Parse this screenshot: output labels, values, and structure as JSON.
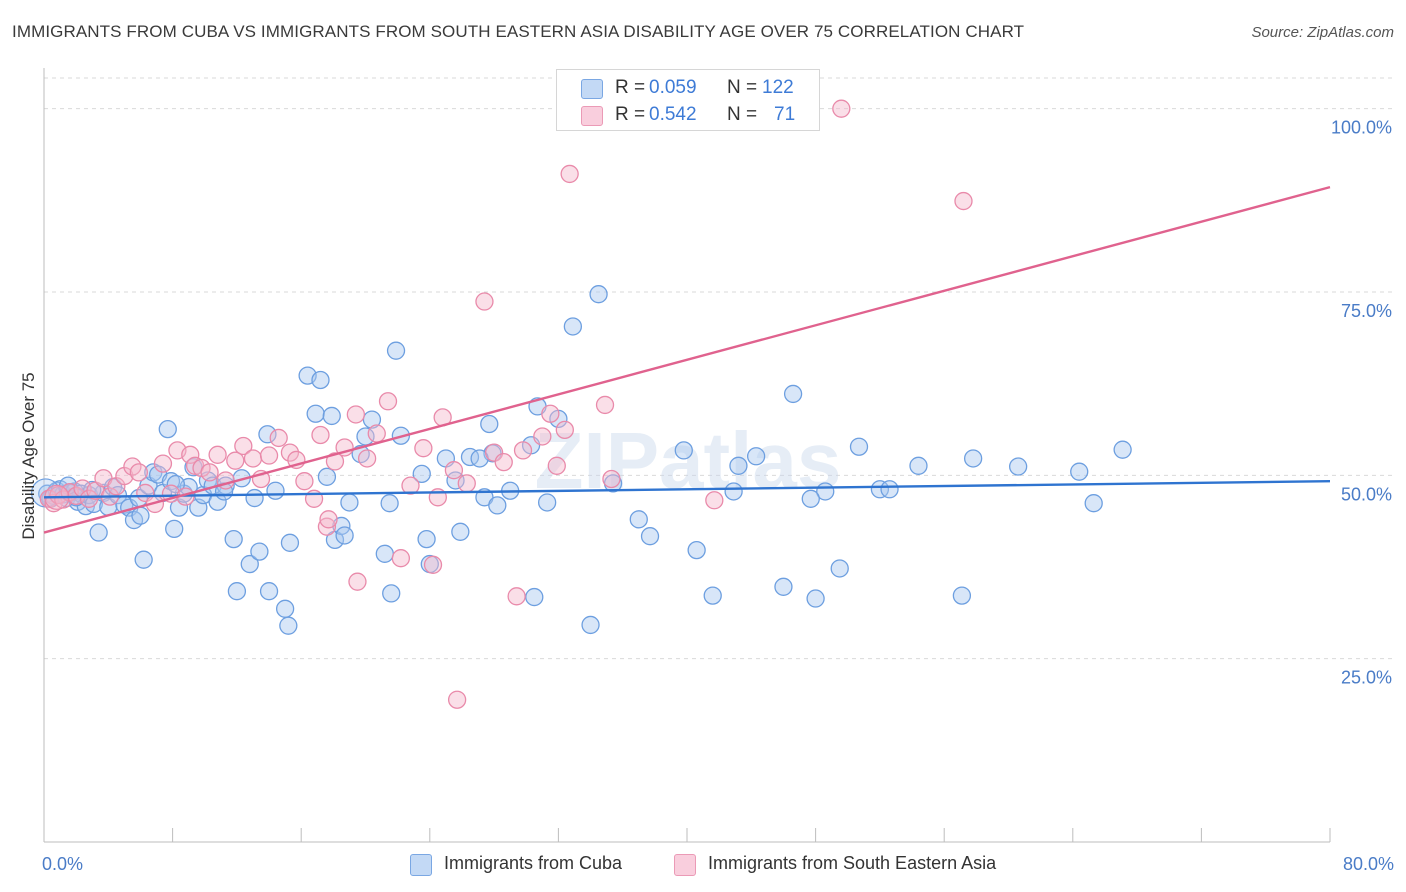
{
  "title": "IMMIGRANTS FROM CUBA VS IMMIGRANTS FROM SOUTH EASTERN ASIA DISABILITY AGE OVER 75 CORRELATION CHART",
  "source": "Source: ZipAtlas.com",
  "watermark": "ZIPatlas",
  "legend": {
    "rows": [
      {
        "r_label": "R =",
        "r_value": "0.059",
        "n_label": "N =",
        "n_value": "122",
        "color": "#a9c8f0"
      },
      {
        "r_label": "R =",
        "r_value": "0.542",
        "n_label": "N =",
        "n_value": "71",
        "color": "#f5b8cc"
      }
    ]
  },
  "colors": {
    "blue_fill": "#a9c8f0",
    "blue_stroke": "#6d9fe0",
    "blue_line": "#2f74d0",
    "pink_fill": "#f5b8cc",
    "pink_stroke": "#e98aaa",
    "pink_line": "#e0628e",
    "tick_text": "#4a7cc7",
    "grid": "#d9d9d9"
  },
  "chart_data": {
    "type": "scatter",
    "title": "IMMIGRANTS FROM CUBA VS IMMIGRANTS FROM SOUTH EASTERN ASIA DISABILITY AGE OVER 75 CORRELATION CHART",
    "xlabel": "",
    "ylabel": "Disability Age Over 75",
    "xlim": [
      0,
      80
    ],
    "ylim": [
      0,
      105
    ],
    "x_tick_labels": [
      "0.0%",
      "80.0%"
    ],
    "y_ticks": [
      25,
      50,
      75,
      100
    ],
    "y_tick_labels": [
      "25.0%",
      "50.0%",
      "75.0%",
      "100.0%"
    ],
    "grid": "horizontal dashed",
    "legend_position": "bottom",
    "series": [
      {
        "name": "Immigrants from Cuba",
        "color": "#a9c8f0",
        "trend": {
          "x": [
            0,
            80
          ],
          "y": [
            47.0,
            49.2
          ]
        },
        "points": [
          [
            0.2,
            47.5
          ],
          [
            0.4,
            46.8
          ],
          [
            0.6,
            47.2
          ],
          [
            0.8,
            47.9
          ],
          [
            1.0,
            48.1
          ],
          [
            1.2,
            47.4
          ],
          [
            1.4,
            46.9
          ],
          [
            1.6,
            47.6
          ],
          [
            1.9,
            47.8
          ],
          [
            2.1,
            46.4
          ],
          [
            2.3,
            47.5
          ],
          [
            2.6,
            45.8
          ],
          [
            2.8,
            47.3
          ],
          [
            3.1,
            46.1
          ],
          [
            3.4,
            42.2
          ],
          [
            3.7,
            47.6
          ],
          [
            4.0,
            45.7
          ],
          [
            4.3,
            48.4
          ],
          [
            4.6,
            47.3
          ],
          [
            5.0,
            46.0
          ],
          [
            5.3,
            45.6
          ],
          [
            5.6,
            43.9
          ],
          [
            5.9,
            46.9
          ],
          [
            6.2,
            38.5
          ],
          [
            6.5,
            48.6
          ],
          [
            6.8,
            50.4
          ],
          [
            7.1,
            50.1
          ],
          [
            7.4,
            47.6
          ],
          [
            7.7,
            56.3
          ],
          [
            7.9,
            49.2
          ],
          [
            8.1,
            42.7
          ],
          [
            8.4,
            45.6
          ],
          [
            8.7,
            47.5
          ],
          [
            9.0,
            48.4
          ],
          [
            9.3,
            51.1
          ],
          [
            9.6,
            45.6
          ],
          [
            9.9,
            47.3
          ],
          [
            10.2,
            49.3
          ],
          [
            10.5,
            48.6
          ],
          [
            10.8,
            46.4
          ],
          [
            11.3,
            48.6
          ],
          [
            11.8,
            41.3
          ],
          [
            12.3,
            49.6
          ],
          [
            12.8,
            37.9
          ],
          [
            13.1,
            46.9
          ],
          [
            13.4,
            39.6
          ],
          [
            13.9,
            55.6
          ],
          [
            14.4,
            47.9
          ],
          [
            15.0,
            31.8
          ],
          [
            15.3,
            40.8
          ],
          [
            16.4,
            63.6
          ],
          [
            16.9,
            58.4
          ],
          [
            17.2,
            63.0
          ],
          [
            17.6,
            49.8
          ],
          [
            17.9,
            58.1
          ],
          [
            18.1,
            41.2
          ],
          [
            18.5,
            43.1
          ],
          [
            19.0,
            46.3
          ],
          [
            19.7,
            52.9
          ],
          [
            20.0,
            55.3
          ],
          [
            20.4,
            57.6
          ],
          [
            21.2,
            39.3
          ],
          [
            21.5,
            46.2
          ],
          [
            21.6,
            33.9
          ],
          [
            21.9,
            67.0
          ],
          [
            22.2,
            55.4
          ],
          [
            23.5,
            50.2
          ],
          [
            23.8,
            41.3
          ],
          [
            24.0,
            37.9
          ],
          [
            25.0,
            52.3
          ],
          [
            25.6,
            49.3
          ],
          [
            25.9,
            42.3
          ],
          [
            26.5,
            52.5
          ],
          [
            27.4,
            47.0
          ],
          [
            27.7,
            57.0
          ],
          [
            27.9,
            53.0
          ],
          [
            28.2,
            45.9
          ],
          [
            29.0,
            47.9
          ],
          [
            30.3,
            54.1
          ],
          [
            30.5,
            33.4
          ],
          [
            30.7,
            59.4
          ],
          [
            31.3,
            46.3
          ],
          [
            32.0,
            57.7
          ],
          [
            32.9,
            70.3
          ],
          [
            34.5,
            74.7
          ],
          [
            35.4,
            48.9
          ],
          [
            37.0,
            44.0
          ],
          [
            37.7,
            41.7
          ],
          [
            39.8,
            53.4
          ],
          [
            40.6,
            39.8
          ],
          [
            41.6,
            33.6
          ],
          [
            43.2,
            51.3
          ],
          [
            44.3,
            52.6
          ],
          [
            46.0,
            34.8
          ],
          [
            46.6,
            61.1
          ],
          [
            48.6,
            47.8
          ],
          [
            49.5,
            37.3
          ],
          [
            50.7,
            53.9
          ],
          [
            52.0,
            48.1
          ],
          [
            52.6,
            48.1
          ],
          [
            54.4,
            51.3
          ],
          [
            57.1,
            33.6
          ],
          [
            57.8,
            52.3
          ],
          [
            60.6,
            51.2
          ],
          [
            64.4,
            50.5
          ],
          [
            65.3,
            46.2
          ],
          [
            67.1,
            53.5
          ],
          [
            2.0,
            47.0
          ],
          [
            3.0,
            48.0
          ],
          [
            6.0,
            44.5
          ],
          [
            14.0,
            34.2
          ],
          [
            15.2,
            29.5
          ],
          [
            18.7,
            41.8
          ],
          [
            34.0,
            29.6
          ],
          [
            42.9,
            47.8
          ],
          [
            48.0,
            33.2
          ],
          [
            47.7,
            46.8
          ],
          [
            27.1,
            52.3
          ],
          [
            12.0,
            34.2
          ],
          [
            8.2,
            48.8
          ],
          [
            11.2,
            47.8
          ],
          [
            1.5,
            48.6
          ]
        ]
      },
      {
        "name": "Immigrants from South Eastern Asia",
        "color": "#f5b8cc",
        "trend": {
          "x": [
            0,
            80
          ],
          "y": [
            42.2,
            89.3
          ]
        },
        "points": [
          [
            0.3,
            46.8
          ],
          [
            0.6,
            46.2
          ],
          [
            0.9,
            47.3
          ],
          [
            1.2,
            46.7
          ],
          [
            1.6,
            47.7
          ],
          [
            2.0,
            47.2
          ],
          [
            2.4,
            48.2
          ],
          [
            2.8,
            46.8
          ],
          [
            3.2,
            47.9
          ],
          [
            3.7,
            49.6
          ],
          [
            4.1,
            47.1
          ],
          [
            4.5,
            48.5
          ],
          [
            5.0,
            49.9
          ],
          [
            5.5,
            51.2
          ],
          [
            5.9,
            50.4
          ],
          [
            6.3,
            47.6
          ],
          [
            6.9,
            46.1
          ],
          [
            7.4,
            51.6
          ],
          [
            7.9,
            47.5
          ],
          [
            8.3,
            53.4
          ],
          [
            8.8,
            47.1
          ],
          [
            9.1,
            52.8
          ],
          [
            9.4,
            51.3
          ],
          [
            9.8,
            51.0
          ],
          [
            10.3,
            50.4
          ],
          [
            10.8,
            52.8
          ],
          [
            11.3,
            49.3
          ],
          [
            11.9,
            52.0
          ],
          [
            12.4,
            54.0
          ],
          [
            13.0,
            52.3
          ],
          [
            13.5,
            49.5
          ],
          [
            14.0,
            52.7
          ],
          [
            14.6,
            55.1
          ],
          [
            15.3,
            53.1
          ],
          [
            15.7,
            52.1
          ],
          [
            16.2,
            49.2
          ],
          [
            16.8,
            46.8
          ],
          [
            17.2,
            55.5
          ],
          [
            17.6,
            43.0
          ],
          [
            18.1,
            51.9
          ],
          [
            18.7,
            53.8
          ],
          [
            19.4,
            58.3
          ],
          [
            20.1,
            52.3
          ],
          [
            20.7,
            55.7
          ],
          [
            21.4,
            60.1
          ],
          [
            22.2,
            38.7
          ],
          [
            22.8,
            48.6
          ],
          [
            23.6,
            53.7
          ],
          [
            24.2,
            37.8
          ],
          [
            24.8,
            57.9
          ],
          [
            25.5,
            50.7
          ],
          [
            26.3,
            48.9
          ],
          [
            27.4,
            73.7
          ],
          [
            28.0,
            53.1
          ],
          [
            28.6,
            51.8
          ],
          [
            29.8,
            53.4
          ],
          [
            31.0,
            55.3
          ],
          [
            31.5,
            58.4
          ],
          [
            31.9,
            51.3
          ],
          [
            32.7,
            91.1
          ],
          [
            34.9,
            59.6
          ],
          [
            35.3,
            49.5
          ],
          [
            41.7,
            46.6
          ],
          [
            49.6,
            100.0
          ],
          [
            57.2,
            87.4
          ],
          [
            29.4,
            33.5
          ],
          [
            25.7,
            19.4
          ],
          [
            19.5,
            35.5
          ],
          [
            17.7,
            44.0
          ],
          [
            24.5,
            47.0
          ],
          [
            32.4,
            56.2
          ]
        ]
      }
    ]
  },
  "bottom_legend": [
    {
      "label": "Immigrants from Cuba",
      "color": "#a9c8f0"
    },
    {
      "label": "Immigrants from South Eastern Asia",
      "color": "#f5b8cc"
    }
  ]
}
